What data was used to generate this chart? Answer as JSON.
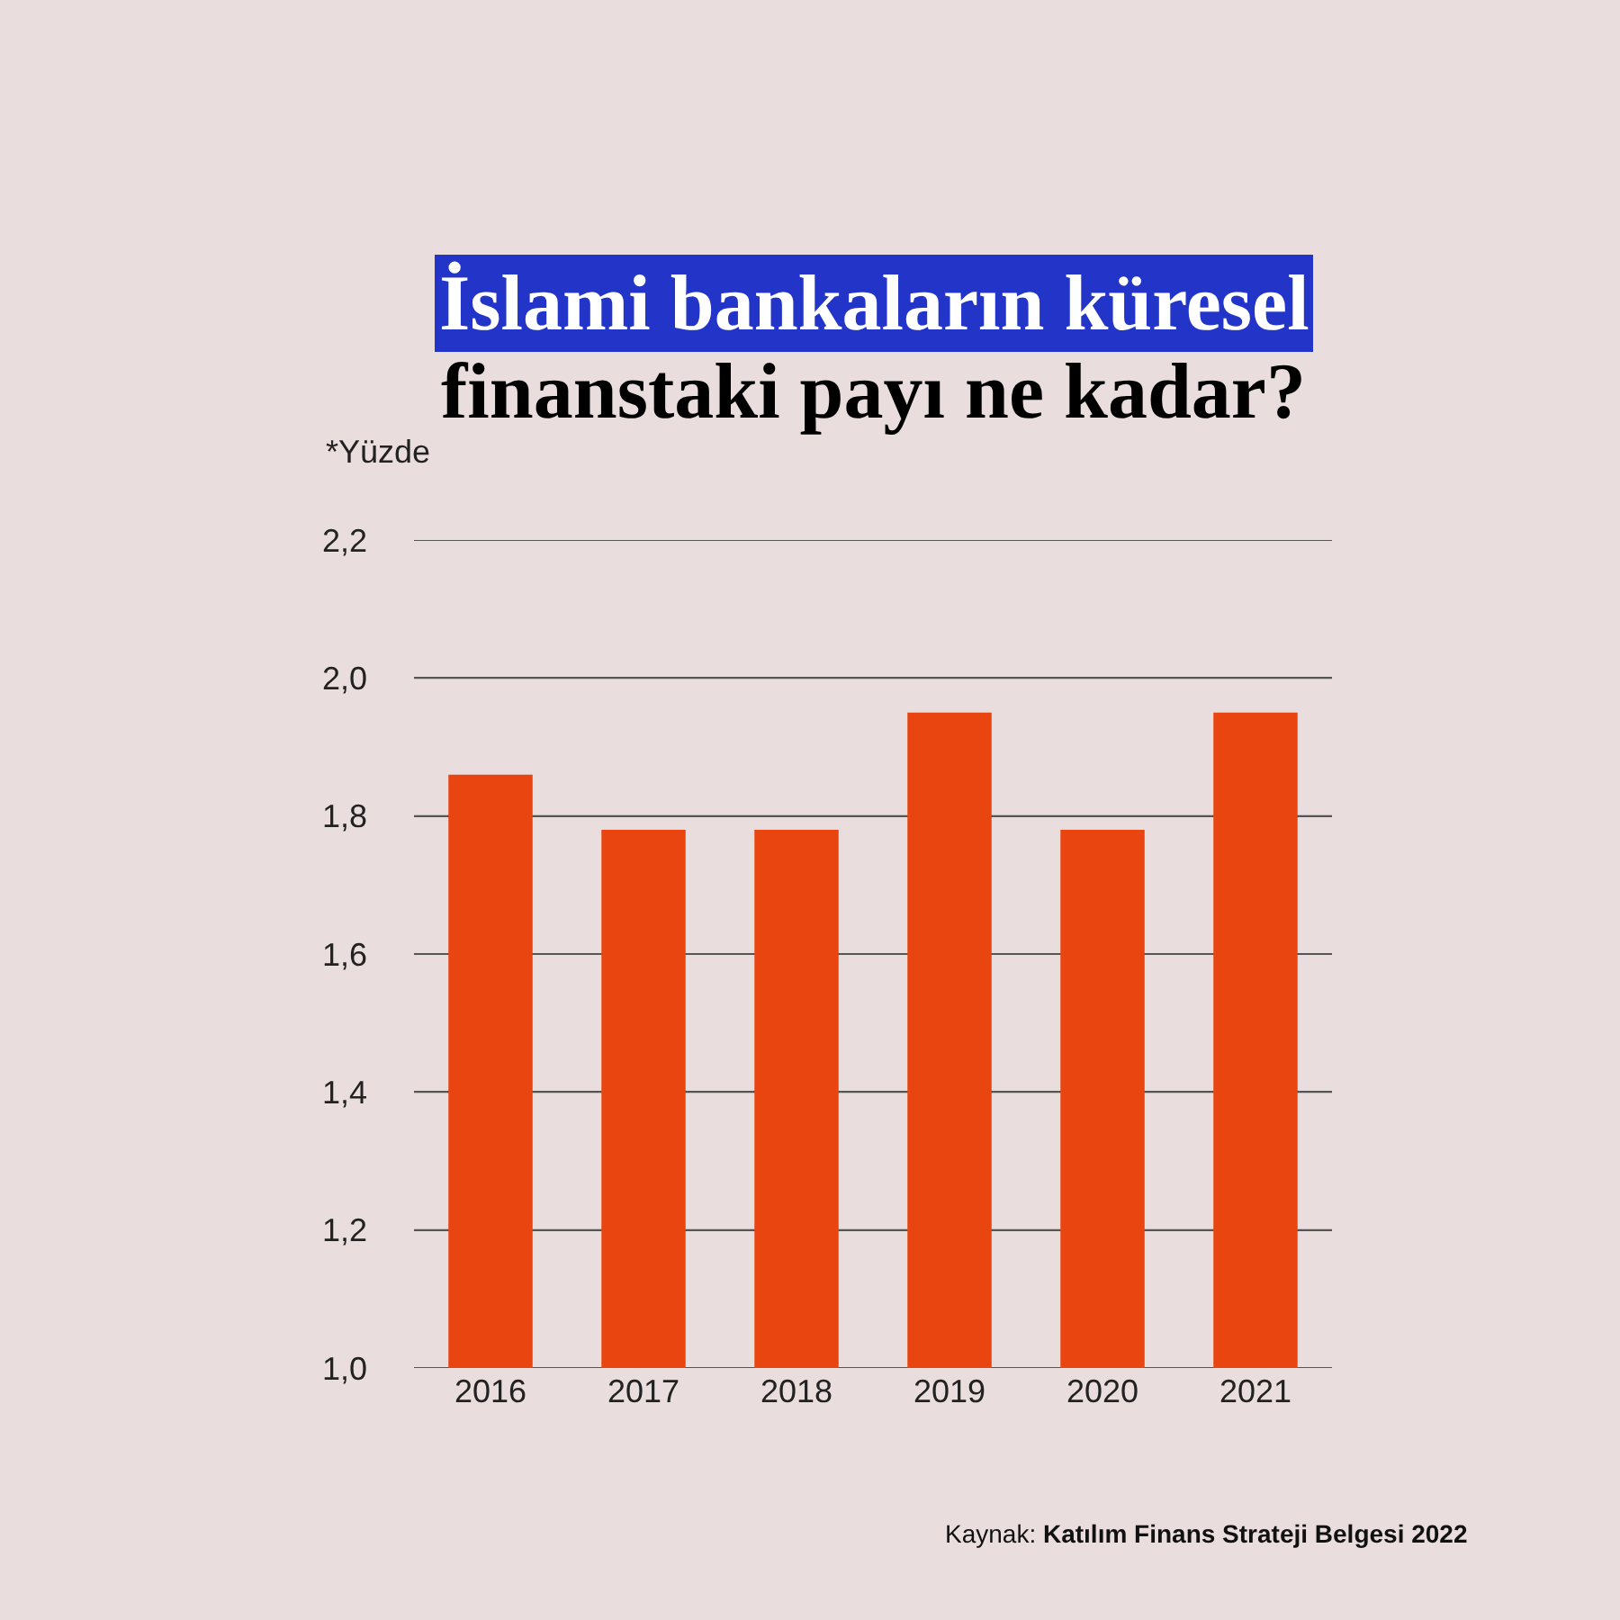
{
  "chart_data": {
    "type": "bar",
    "title": "İslami bankaların küresel\nfinanstaki payı ne kadar?",
    "ylabel": "*Yüzde",
    "categories": [
      "2016",
      "2017",
      "2018",
      "2019",
      "2020",
      "2021"
    ],
    "values": [
      1.86,
      1.78,
      1.78,
      1.95,
      1.78,
      1.95
    ],
    "color": "#e84510",
    "ylim": [
      1.0,
      2.2
    ],
    "yticks": [
      {
        "value": 1.0,
        "label": "1,0"
      },
      {
        "value": 1.2,
        "label": "1,2"
      },
      {
        "value": 1.4,
        "label": "1,4"
      },
      {
        "value": 1.6,
        "label": "1,6"
      },
      {
        "value": 1.8,
        "label": "1,8"
      },
      {
        "value": 2.0,
        "label": "2,0"
      },
      {
        "value": 2.2,
        "label": "2,2"
      }
    ],
    "grid": "y",
    "annotations": [
      "Kaynak: Katılım Finans Strateji Belgesi 2022"
    ]
  }
}
